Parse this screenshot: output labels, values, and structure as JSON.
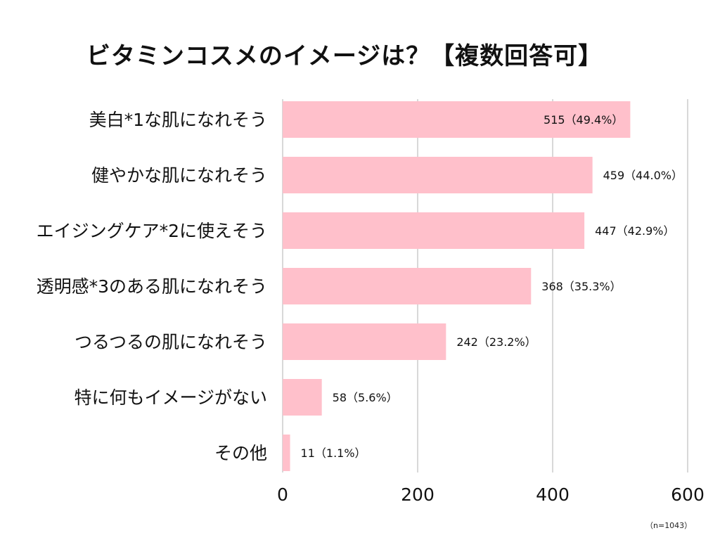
{
  "chart_data": {
    "type": "bar",
    "orientation": "horizontal",
    "title": "ビタミンコスメのイメージは？【複数回答可】",
    "categories": [
      "美白*1な肌になれそう",
      "健やかな肌になれそう",
      "エイジングケア*2に使えそう",
      "透明感*3のある肌になれそう",
      "つるつるの肌になれそう",
      "特に何もイメージがない",
      "その他"
    ],
    "values": [
      515,
      459,
      447,
      368,
      242,
      58,
      11
    ],
    "data_labels": [
      "515（49.4%）",
      "459（44.0%）",
      "447（42.9%）",
      "368（35.3%）",
      "242（23.2%）",
      "58（5.6%）",
      "11（1.1%）"
    ],
    "xlim": [
      0,
      600
    ],
    "x_ticks": [
      0,
      200,
      400,
      600
    ],
    "x_tick_labels": [
      "0",
      "200",
      "400",
      "600"
    ],
    "grid": "vertical",
    "bar_color": "#ffc0cb",
    "grid_color": "#cccccc",
    "note": "（n=1043）"
  }
}
